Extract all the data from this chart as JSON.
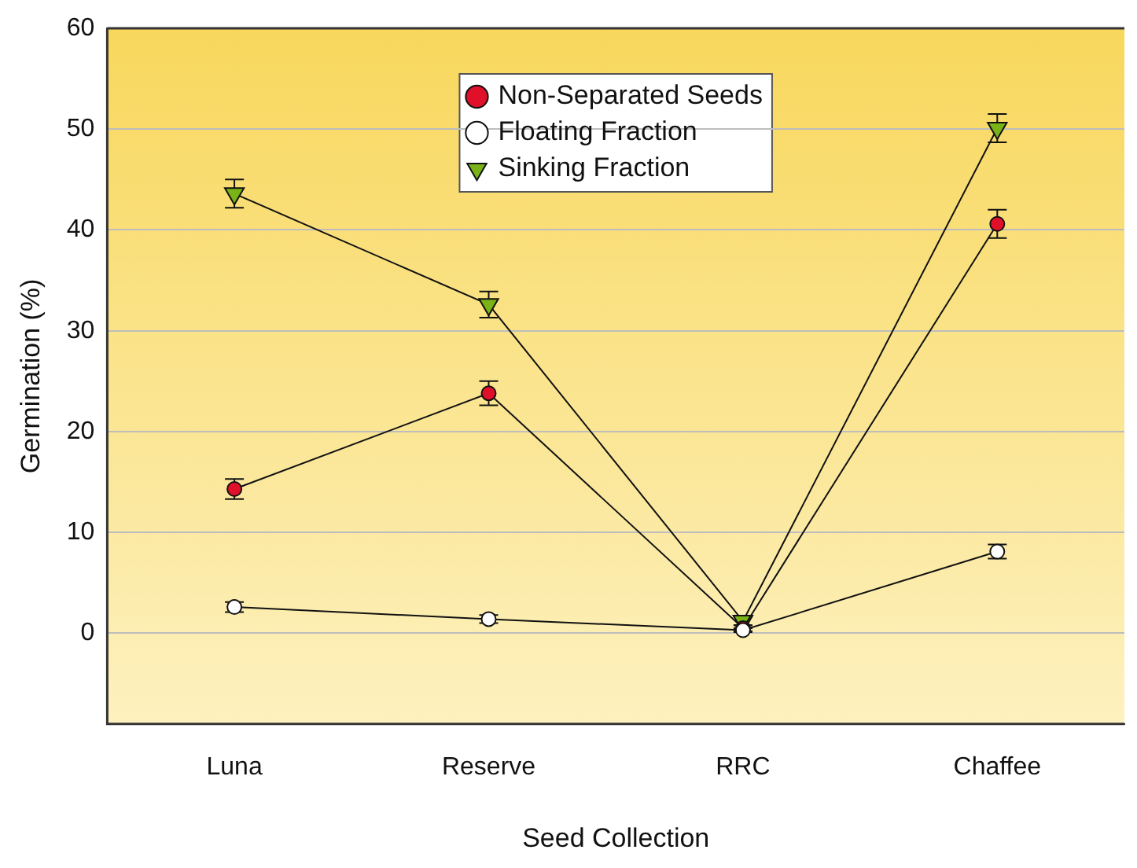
{
  "chart_data": {
    "type": "line",
    "xlabel": "Seed Collection",
    "ylabel": "Germination (%)",
    "categories": [
      "Luna",
      "Reserve",
      "RRC",
      "Chaffee"
    ],
    "ylim": [
      -9,
      60
    ],
    "yticks": [
      0,
      10,
      20,
      30,
      40,
      50,
      60
    ],
    "grid": "y",
    "legend": "top",
    "series": [
      {
        "name": "Non-Separated Seeds",
        "color": "#e0102a",
        "marker": "circle",
        "values": [
          14.3,
          23.8,
          0.5,
          40.6
        ],
        "errors": [
          1,
          1.2,
          0.3,
          1.4
        ]
      },
      {
        "name": "Floating Fraction",
        "color": "#ffffff",
        "marker": "circle",
        "values": [
          2.6,
          1.4,
          0.3,
          8.1
        ],
        "errors": [
          0.5,
          0.4,
          0.2,
          0.7
        ]
      },
      {
        "name": "Sinking Fraction",
        "color": "#7ab317",
        "marker": "triangle",
        "values": [
          43.6,
          32.6,
          1.2,
          50.1
        ],
        "errors": [
          1.4,
          1.3,
          0.4,
          1.4
        ]
      }
    ]
  }
}
